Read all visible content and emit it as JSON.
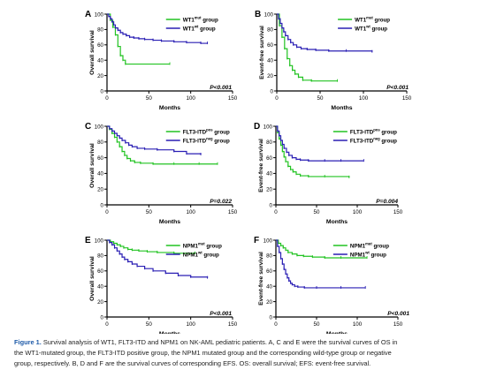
{
  "colors": {
    "mutant_positive_green": "#22c322",
    "wildtype_negative_blue": "#2a1fb4",
    "axis": "#000000",
    "caption_label": "#1d5aa8"
  },
  "panels": [
    {
      "letter": "A",
      "ylabel": "Overall survival",
      "xlabel": "Months",
      "pvalue": "P<0.001",
      "legend": [
        {
          "base": "WT1",
          "sup": "mut",
          "suffix": " group",
          "color": "#22c322"
        },
        {
          "base": "WT1",
          "sup": "wt",
          "suffix": " group",
          "color": "#2a1fb4"
        }
      ]
    },
    {
      "letter": "B",
      "ylabel": "Event-free survival",
      "xlabel": "Months",
      "pvalue": "P<0.001",
      "legend": [
        {
          "base": "WT1",
          "sup": "mut",
          "suffix": " group",
          "color": "#22c322"
        },
        {
          "base": "WT1",
          "sup": "wt",
          "suffix": " group",
          "color": "#2a1fb4"
        }
      ]
    },
    {
      "letter": "C",
      "ylabel": "Overall survival",
      "xlabel": "Months",
      "pvalue": "P=0.022",
      "legend": [
        {
          "base": "FLT3-ITD",
          "sup": "pos",
          "suffix": " group",
          "color": "#22c322"
        },
        {
          "base": "FLT3-ITD",
          "sup": "neg",
          "suffix": " group",
          "color": "#2a1fb4"
        }
      ]
    },
    {
      "letter": "D",
      "ylabel": "Event-free survival",
      "xlabel": "Months",
      "pvalue": "P=0.004",
      "legend": [
        {
          "base": "FLT3-ITD",
          "sup": "pos",
          "suffix": " group",
          "color": "#22c322"
        },
        {
          "base": "FLT3-ITD",
          "sup": "neg",
          "suffix": " group",
          "color": "#2a1fb4"
        }
      ]
    },
    {
      "letter": "E",
      "ylabel": "Overall survival",
      "xlabel": "Months",
      "pvalue": "P<0.001",
      "legend": [
        {
          "base": "NPM1",
          "sup": "mut",
          "suffix": " group",
          "color": "#22c322"
        },
        {
          "base": "NPM1",
          "sup": "wt",
          "suffix": " group",
          "color": "#2a1fb4"
        }
      ]
    },
    {
      "letter": "F",
      "ylabel": "Event-free survival",
      "xlabel": "Months",
      "pvalue": "P<0.001",
      "legend": [
        {
          "base": "NPM1",
          "sup": "mut",
          "suffix": " group",
          "color": "#22c322"
        },
        {
          "base": "NPM1",
          "sup": "wt",
          "suffix": " group",
          "color": "#2a1fb4"
        }
      ]
    }
  ],
  "chart_data": [
    {
      "type": "line",
      "panel": "A",
      "xlabel": "Months",
      "ylabel": "Overall survival",
      "xlim": [
        0,
        150
      ],
      "ylim": [
        0,
        100
      ],
      "xticks": [
        "0",
        "50",
        "100",
        "150"
      ],
      "yticks": [
        "0",
        "20",
        "40",
        "60",
        "80",
        "100"
      ],
      "series": [
        {
          "name": "WT1mut group",
          "color": "#22c322",
          "step": true,
          "points": [
            [
              0,
              100
            ],
            [
              4,
              92
            ],
            [
              7,
              83
            ],
            [
              10,
              73
            ],
            [
              13,
              58
            ],
            [
              16,
              46
            ],
            [
              19,
              40
            ],
            [
              22,
              35
            ],
            [
              75,
              35
            ]
          ]
        },
        {
          "name": "WT1wt group",
          "color": "#2a1fb4",
          "step": true,
          "points": [
            [
              0,
              100
            ],
            [
              2,
              97
            ],
            [
              4,
              94
            ],
            [
              6,
              90
            ],
            [
              8,
              86
            ],
            [
              10,
              82
            ],
            [
              13,
              79
            ],
            [
              16,
              76
            ],
            [
              19,
              74
            ],
            [
              23,
              72
            ],
            [
              27,
              70
            ],
            [
              32,
              69
            ],
            [
              38,
              68
            ],
            [
              45,
              67
            ],
            [
              55,
              66
            ],
            [
              65,
              65
            ],
            [
              80,
              64
            ],
            [
              95,
              63
            ],
            [
              112,
              62
            ],
            [
              120,
              62
            ]
          ]
        }
      ]
    },
    {
      "type": "line",
      "panel": "B",
      "xlabel": "Months",
      "ylabel": "Event-free survival",
      "xlim": [
        0,
        150
      ],
      "ylim": [
        0,
        100
      ],
      "xticks": [
        "0",
        "50",
        "100",
        "150"
      ],
      "yticks": [
        "0",
        "20",
        "40",
        "60",
        "80",
        "100"
      ],
      "series": [
        {
          "name": "WT1mut group",
          "color": "#22c322",
          "step": true,
          "points": [
            [
              0,
              100
            ],
            [
              3,
              85
            ],
            [
              6,
              70
            ],
            [
              9,
              55
            ],
            [
              12,
              42
            ],
            [
              15,
              33
            ],
            [
              18,
              27
            ],
            [
              21,
              22
            ],
            [
              25,
              18
            ],
            [
              30,
              14
            ],
            [
              40,
              13
            ],
            [
              70,
              13
            ]
          ]
        },
        {
          "name": "WT1wt group",
          "color": "#2a1fb4",
          "step": true,
          "points": [
            [
              0,
              100
            ],
            [
              2,
              94
            ],
            [
              4,
              88
            ],
            [
              6,
              82
            ],
            [
              8,
              77
            ],
            [
              10,
              72
            ],
            [
              13,
              67
            ],
            [
              16,
              63
            ],
            [
              19,
              60
            ],
            [
              23,
              57
            ],
            [
              28,
              55
            ],
            [
              35,
              54
            ],
            [
              45,
              53
            ],
            [
              60,
              52
            ],
            [
              80,
              52
            ],
            [
              110,
              51
            ]
          ]
        }
      ]
    },
    {
      "type": "line",
      "panel": "C",
      "xlabel": "Months",
      "ylabel": "Overall survival",
      "xlim": [
        0,
        150
      ],
      "ylim": [
        0,
        100
      ],
      "xticks": [
        "0",
        "50",
        "100",
        "150"
      ],
      "yticks": [
        "0",
        "20",
        "40",
        "60",
        "80",
        "100"
      ],
      "series": [
        {
          "name": "FLT3-ITDpos group",
          "color": "#22c322",
          "step": true,
          "points": [
            [
              0,
              100
            ],
            [
              3,
              96
            ],
            [
              6,
              91
            ],
            [
              9,
              86
            ],
            [
              12,
              80
            ],
            [
              15,
              74
            ],
            [
              18,
              68
            ],
            [
              21,
              63
            ],
            [
              24,
              59
            ],
            [
              28,
              56
            ],
            [
              33,
              54
            ],
            [
              40,
              53
            ],
            [
              55,
              52
            ],
            [
              80,
              52
            ],
            [
              110,
              52
            ],
            [
              132,
              52
            ]
          ]
        },
        {
          "name": "FLT3-ITDneg group",
          "color": "#2a1fb4",
          "step": true,
          "points": [
            [
              0,
              100
            ],
            [
              3,
              97
            ],
            [
              6,
              94
            ],
            [
              9,
              91
            ],
            [
              12,
              88
            ],
            [
              15,
              85
            ],
            [
              18,
              82
            ],
            [
              22,
              79
            ],
            [
              26,
              76
            ],
            [
              30,
              74
            ],
            [
              36,
              72
            ],
            [
              45,
              71
            ],
            [
              60,
              70
            ],
            [
              80,
              68
            ],
            [
              95,
              65
            ],
            [
              112,
              64
            ]
          ]
        }
      ]
    },
    {
      "type": "line",
      "panel": "D",
      "xlabel": "Months",
      "ylabel": "Event-free survival",
      "xlim": [
        0,
        150
      ],
      "ylim": [
        0,
        100
      ],
      "xticks": [
        "0",
        "50",
        "100",
        "150"
      ],
      "yticks": [
        "0",
        "20",
        "40",
        "60",
        "80",
        "100"
      ],
      "series": [
        {
          "name": "FLT3-ITDpos group",
          "color": "#22c322",
          "step": true,
          "points": [
            [
              0,
              100
            ],
            [
              2,
              92
            ],
            [
              4,
              84
            ],
            [
              6,
              76
            ],
            [
              8,
              68
            ],
            [
              10,
              61
            ],
            [
              12,
              55
            ],
            [
              15,
              49
            ],
            [
              18,
              45
            ],
            [
              21,
              42
            ],
            [
              25,
              39
            ],
            [
              30,
              37
            ],
            [
              40,
              36
            ],
            [
              60,
              36
            ],
            [
              90,
              35
            ]
          ]
        },
        {
          "name": "FLT3-ITDneg group",
          "color": "#2a1fb4",
          "step": true,
          "points": [
            [
              0,
              100
            ],
            [
              2,
              94
            ],
            [
              4,
              88
            ],
            [
              6,
              82
            ],
            [
              8,
              77
            ],
            [
              10,
              72
            ],
            [
              13,
              67
            ],
            [
              16,
              63
            ],
            [
              20,
              60
            ],
            [
              25,
              58
            ],
            [
              30,
              57
            ],
            [
              40,
              56
            ],
            [
              60,
              56
            ],
            [
              80,
              56
            ],
            [
              108,
              56
            ]
          ]
        }
      ]
    },
    {
      "type": "line",
      "panel": "E",
      "xlabel": "Months",
      "ylabel": "Overall survival",
      "xlim": [
        0,
        150
      ],
      "ylim": [
        0,
        100
      ],
      "xticks": [
        "0",
        "50",
        "100",
        "150"
      ],
      "yticks": [
        "0",
        "20",
        "40",
        "60",
        "80",
        "100"
      ],
      "series": [
        {
          "name": "NPM1mut group",
          "color": "#22c322",
          "step": true,
          "points": [
            [
              0,
              100
            ],
            [
              4,
              98
            ],
            [
              8,
              96
            ],
            [
              12,
              94
            ],
            [
              16,
              92
            ],
            [
              20,
              90
            ],
            [
              25,
              88
            ],
            [
              30,
              87
            ],
            [
              38,
              86
            ],
            [
              48,
              85
            ],
            [
              60,
              84
            ],
            [
              80,
              83
            ],
            [
              105,
              83
            ]
          ]
        },
        {
          "name": "NPM1wt group",
          "color": "#2a1fb4",
          "step": true,
          "points": [
            [
              0,
              100
            ],
            [
              3,
              97
            ],
            [
              6,
              94
            ],
            [
              9,
              90
            ],
            [
              12,
              86
            ],
            [
              15,
              82
            ],
            [
              18,
              78
            ],
            [
              21,
              75
            ],
            [
              25,
              72
            ],
            [
              30,
              69
            ],
            [
              36,
              66
            ],
            [
              45,
              63
            ],
            [
              55,
              60
            ],
            [
              70,
              57
            ],
            [
              85,
              54
            ],
            [
              100,
              52
            ],
            [
              120,
              51
            ]
          ]
        }
      ]
    },
    {
      "type": "line",
      "panel": "F",
      "xlabel": "Months",
      "ylabel": "Event-free survival",
      "xlim": [
        0,
        150
      ],
      "ylim": [
        0,
        100
      ],
      "xticks": [
        "0",
        "50",
        "100",
        "150"
      ],
      "yticks": [
        "0",
        "20",
        "40",
        "60",
        "80",
        "100"
      ],
      "series": [
        {
          "name": "NPM1mut group",
          "color": "#22c322",
          "step": true,
          "points": [
            [
              0,
              100
            ],
            [
              3,
              96
            ],
            [
              6,
              93
            ],
            [
              9,
              90
            ],
            [
              12,
              87
            ],
            [
              15,
              84
            ],
            [
              20,
              82
            ],
            [
              26,
              80
            ],
            [
              34,
              79
            ],
            [
              45,
              78
            ],
            [
              60,
              77
            ],
            [
              80,
              77
            ],
            [
              112,
              77
            ]
          ]
        },
        {
          "name": "NPM1wt group",
          "color": "#2a1fb4",
          "step": true,
          "points": [
            [
              0,
              100
            ],
            [
              2,
              92
            ],
            [
              4,
              84
            ],
            [
              6,
              76
            ],
            [
              8,
              69
            ],
            [
              10,
              62
            ],
            [
              12,
              56
            ],
            [
              14,
              51
            ],
            [
              16,
              47
            ],
            [
              18,
              44
            ],
            [
              20,
              42
            ],
            [
              23,
              40
            ],
            [
              27,
              39
            ],
            [
              35,
              38
            ],
            [
              50,
              38
            ],
            [
              80,
              38
            ],
            [
              110,
              38
            ]
          ]
        }
      ]
    }
  ],
  "caption": {
    "label": "Figure 1.",
    "line1": " Survival analysis of WT1, FLT3-ITD and NPM1 on NK-AML pediatric patients. A, C and E were the survival curves of OS in",
    "line2": "the WT1-mutated group, the FLT3-ITD positive group, the NPM1 mutated group and the corresponding wild-type group or negative",
    "line3": "group, respectively. B, D and F are the survival curves of corresponding EFS. OS: overall survival; EFS: event-free survival."
  }
}
